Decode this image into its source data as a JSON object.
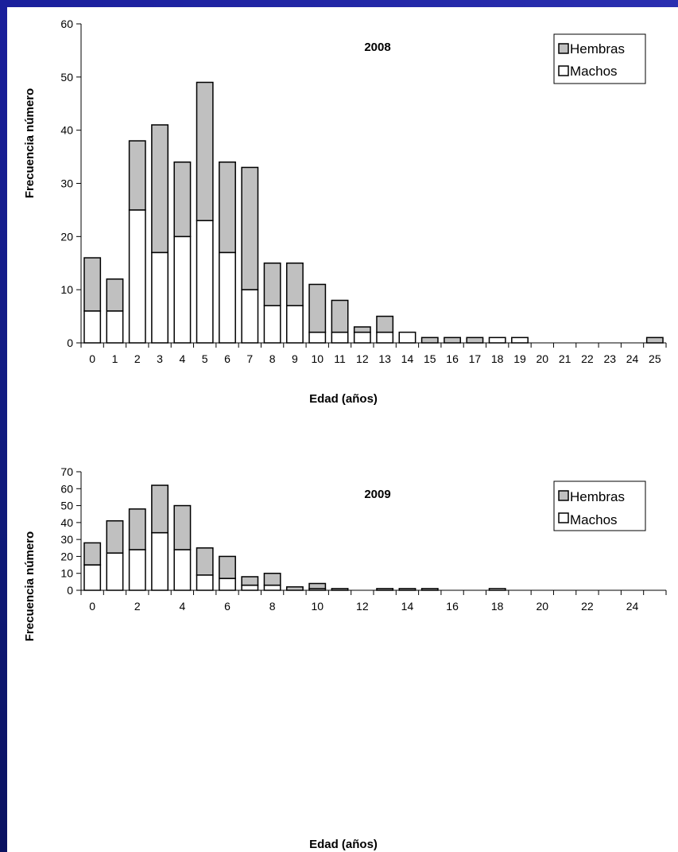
{
  "colors": {
    "hembras": "#c0c0c0",
    "machos": "#ffffff",
    "frame": "#1a1f9c"
  },
  "chart_data": [
    {
      "type": "bar",
      "stacked": true,
      "title": "2008",
      "xlabel": "Edad (años)",
      "ylabel": "Frecuencia número",
      "ylim": [
        0,
        60
      ],
      "yticks": [
        0,
        10,
        20,
        30,
        40,
        50,
        60
      ],
      "categories": [
        "0",
        "1",
        "2",
        "3",
        "4",
        "5",
        "6",
        "7",
        "8",
        "9",
        "10",
        "11",
        "12",
        "13",
        "14",
        "15",
        "16",
        "17",
        "18",
        "19",
        "20",
        "21",
        "22",
        "23",
        "24",
        "25"
      ],
      "xtick_labels": [
        "0",
        "1",
        "2",
        "3",
        "4",
        "5",
        "6",
        "7",
        "8",
        "9",
        "10",
        "11",
        "12",
        "13",
        "14",
        "15",
        "16",
        "17",
        "18",
        "19",
        "20",
        "21",
        "22",
        "23",
        "24",
        "25"
      ],
      "legend": "top-right",
      "series": [
        {
          "name": "Machos",
          "values": [
            6,
            6,
            25,
            17,
            20,
            23,
            17,
            10,
            7,
            7,
            2,
            2,
            2,
            2,
            2,
            0,
            0,
            0,
            1,
            1,
            0,
            0,
            0,
            0,
            0,
            0
          ]
        },
        {
          "name": "Hembras",
          "values": [
            10,
            6,
            13,
            24,
            14,
            26,
            17,
            23,
            8,
            8,
            9,
            6,
            1,
            3,
            0,
            1,
            1,
            1,
            0,
            0,
            0,
            0,
            0,
            0,
            0,
            1
          ]
        }
      ]
    },
    {
      "type": "bar",
      "stacked": true,
      "title": "2009",
      "xlabel": "Edad (años)",
      "ylabel": "Frecuencia número",
      "ylim": [
        0,
        70
      ],
      "yticks": [
        0,
        10,
        20,
        30,
        40,
        50,
        60,
        70
      ],
      "categories": [
        "0",
        "1",
        "2",
        "3",
        "4",
        "5",
        "6",
        "7",
        "8",
        "9",
        "10",
        "11",
        "12",
        "13",
        "14",
        "15",
        "16",
        "17",
        "18",
        "19",
        "20",
        "21",
        "22",
        "23",
        "24",
        "25"
      ],
      "xtick_labels": [
        "0",
        "",
        "2",
        "",
        "4",
        "",
        "6",
        "",
        "8",
        "",
        "10",
        "",
        "12",
        "",
        "14",
        "",
        "16",
        "",
        "18",
        "",
        "20",
        "",
        "22",
        "",
        "24",
        ""
      ],
      "legend": "top-right",
      "series": [
        {
          "name": "Machos",
          "values": [
            15,
            22,
            24,
            34,
            24,
            9,
            7,
            3,
            3,
            0,
            1,
            0,
            0,
            0,
            0,
            0,
            0,
            0,
            1,
            0,
            0,
            0,
            0,
            0,
            0,
            0
          ]
        },
        {
          "name": "Hembras",
          "values": [
            13,
            19,
            24,
            28,
            26,
            16,
            13,
            5,
            7,
            2,
            3,
            1,
            0,
            1,
            1,
            1,
            0,
            0,
            0,
            0,
            0,
            0,
            0,
            0,
            0,
            0
          ]
        }
      ]
    }
  ]
}
